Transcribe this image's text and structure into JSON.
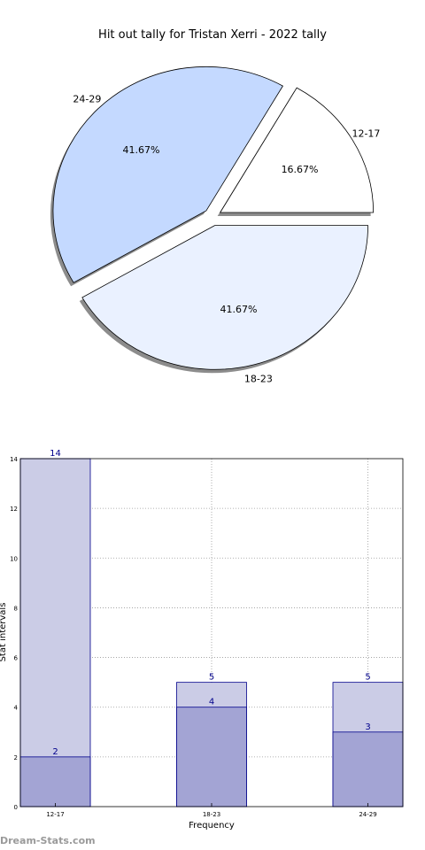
{
  "chart_data": [
    {
      "type": "pie",
      "title": "Hit out tally for Tristan Xerri - 2022 tally",
      "slices": [
        {
          "label": "12-17",
          "value": 16.67,
          "pct_label": "16.67%",
          "color": "#ffffff"
        },
        {
          "label": "24-29",
          "value": 41.67,
          "pct_label": "41.67%",
          "color": "#c4d9ff"
        },
        {
          "label": "18-23",
          "value": 41.67,
          "pct_label": "41.67%",
          "color": "#eaf1ff"
        }
      ],
      "exploded": true,
      "shadow": true
    },
    {
      "type": "bar",
      "categories": [
        "12-17",
        "18-23",
        "24-29"
      ],
      "series": [
        {
          "values": [
            14,
            5,
            5
          ],
          "color": "#cbcce6"
        },
        {
          "values": [
            2,
            4,
            3
          ],
          "color": "#a3a4d4"
        }
      ],
      "xlabel": "Frequency",
      "ylabel": "Stat intervals",
      "ylim": [
        0,
        14
      ],
      "yticks": [
        "0",
        "2",
        "4",
        "6",
        "8",
        "10",
        "12",
        "14"
      ],
      "grid": true,
      "edge_color": "#00008b",
      "label_color": "#00008b"
    }
  ],
  "watermark": "Dream-Stats.com"
}
